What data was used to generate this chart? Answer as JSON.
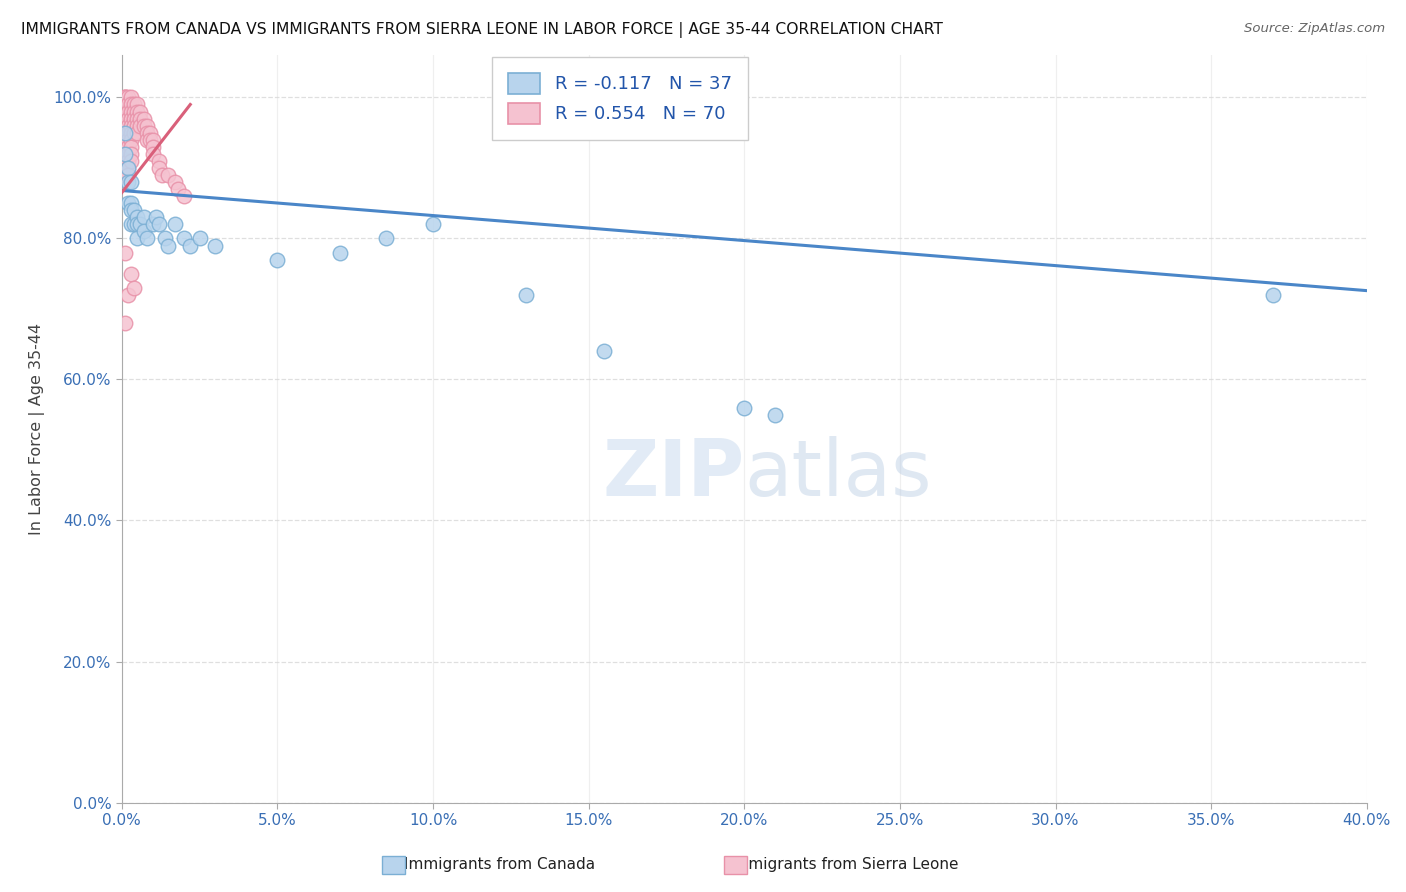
{
  "title": "IMMIGRANTS FROM CANADA VS IMMIGRANTS FROM SIERRA LEONE IN LABOR FORCE | AGE 35-44 CORRELATION CHART",
  "source": "Source: ZipAtlas.com",
  "ylabel": "In Labor Force | Age 35-44",
  "watermark": "ZIPatlas",
  "canada_color": "#b8d4ed",
  "canada_edge": "#7bafd4",
  "sl_color": "#f5c2d0",
  "sl_edge": "#e891a8",
  "canada_line_color": "#4a86c8",
  "sl_line_color": "#d9607a",
  "background_color": "#ffffff",
  "grid_color": "#d8d8d8",
  "xlim": [
    0.0,
    0.4
  ],
  "ylim": [
    0.0,
    1.06
  ],
  "xtick_vals": [
    0.0,
    0.05,
    0.1,
    0.15,
    0.2,
    0.25,
    0.3,
    0.35,
    0.4
  ],
  "ytick_vals": [
    0.0,
    0.2,
    0.4,
    0.6,
    0.8,
    1.0
  ],
  "canada_x": [
    0.001,
    0.001,
    0.002,
    0.002,
    0.002,
    0.003,
    0.003,
    0.003,
    0.003,
    0.004,
    0.004,
    0.005,
    0.005,
    0.005,
    0.006,
    0.007,
    0.007,
    0.008,
    0.01,
    0.011,
    0.012,
    0.014,
    0.015,
    0.017,
    0.02,
    0.022,
    0.025,
    0.03,
    0.05,
    0.07,
    0.085,
    0.1,
    0.13,
    0.155,
    0.2,
    0.21,
    0.37
  ],
  "canada_y": [
    0.95,
    0.92,
    0.9,
    0.88,
    0.85,
    0.88,
    0.85,
    0.84,
    0.82,
    0.84,
    0.82,
    0.83,
    0.82,
    0.8,
    0.82,
    0.83,
    0.81,
    0.8,
    0.82,
    0.83,
    0.82,
    0.8,
    0.79,
    0.82,
    0.8,
    0.79,
    0.8,
    0.79,
    0.77,
    0.78,
    0.8,
    0.82,
    0.72,
    0.64,
    0.56,
    0.55,
    0.72
  ],
  "sl_x": [
    0.001,
    0.001,
    0.001,
    0.001,
    0.001,
    0.001,
    0.001,
    0.001,
    0.001,
    0.001,
    0.001,
    0.001,
    0.001,
    0.001,
    0.002,
    0.002,
    0.002,
    0.002,
    0.002,
    0.002,
    0.002,
    0.002,
    0.002,
    0.002,
    0.002,
    0.002,
    0.003,
    0.003,
    0.003,
    0.003,
    0.003,
    0.003,
    0.003,
    0.003,
    0.003,
    0.003,
    0.004,
    0.004,
    0.004,
    0.004,
    0.004,
    0.005,
    0.005,
    0.005,
    0.005,
    0.005,
    0.006,
    0.006,
    0.006,
    0.007,
    0.007,
    0.008,
    0.008,
    0.008,
    0.009,
    0.009,
    0.01,
    0.01,
    0.01,
    0.012,
    0.012,
    0.013,
    0.015,
    0.017,
    0.018,
    0.02,
    0.001,
    0.001,
    0.002,
    0.003,
    0.004
  ],
  "sl_y": [
    1.0,
    1.0,
    1.0,
    0.99,
    0.98,
    0.97,
    0.96,
    0.95,
    0.94,
    0.93,
    0.92,
    0.91,
    0.9,
    0.89,
    1.0,
    0.99,
    0.98,
    0.97,
    0.96,
    0.95,
    0.94,
    0.93,
    0.92,
    0.91,
    0.9,
    0.89,
    1.0,
    0.99,
    0.98,
    0.97,
    0.96,
    0.95,
    0.94,
    0.93,
    0.92,
    0.91,
    0.99,
    0.98,
    0.97,
    0.96,
    0.95,
    0.99,
    0.98,
    0.97,
    0.96,
    0.95,
    0.98,
    0.97,
    0.96,
    0.97,
    0.96,
    0.96,
    0.95,
    0.94,
    0.95,
    0.94,
    0.94,
    0.93,
    0.92,
    0.91,
    0.9,
    0.89,
    0.89,
    0.88,
    0.87,
    0.86,
    0.78,
    0.68,
    0.72,
    0.75,
    0.73
  ],
  "canada_trend_x": [
    0.0,
    0.4
  ],
  "canada_trend_y": [
    0.868,
    0.726
  ],
  "sl_trend_x": [
    0.0,
    0.022
  ],
  "sl_trend_y": [
    0.865,
    0.99
  ]
}
